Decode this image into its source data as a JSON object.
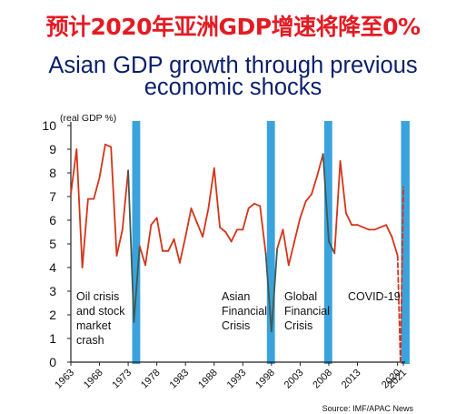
{
  "title_cn": "预计2020年亚洲GDP增速将降至0%",
  "title_en_line1": "Asian GDP growth through previous",
  "title_en_line2": "economic shocks",
  "chart_data": {
    "type": "line",
    "title": "Asian GDP growth through previous economic shocks",
    "ylabel": "(real GDP %)",
    "xlabel": "",
    "ylim": [
      0,
      10
    ],
    "yticks": [
      0,
      1,
      2,
      3,
      4,
      5,
      6,
      7,
      8,
      9,
      10
    ],
    "xlim": [
      1963,
      2021
    ],
    "xtick_labels": [
      "1963",
      "1968",
      "1973",
      "1978",
      "1983",
      "1988",
      "1993",
      "1998",
      "2003",
      "2008",
      "2013",
      "2020",
      "2021"
    ],
    "xtick_values": [
      1963,
      1968,
      1973,
      1978,
      1983,
      1988,
      1993,
      1998,
      2003,
      2008,
      2013,
      2020,
      2021
    ],
    "grid": false,
    "series": [
      {
        "x": [
          1963,
          1964,
          1965,
          1966,
          1967,
          1968,
          1969,
          1970,
          1971,
          1972,
          1973,
          1974,
          1975,
          1976,
          1977,
          1978,
          1979,
          1980,
          1981,
          1982,
          1983,
          1984,
          1985,
          1986,
          1987,
          1988,
          1989,
          1990,
          1991,
          1992,
          1993,
          1994,
          1995,
          1996,
          1997,
          1998,
          1999,
          2000,
          2001,
          2002,
          2003,
          2004,
          2005,
          2006,
          2007,
          2008,
          2009,
          2010,
          2011,
          2012,
          2013,
          2014,
          2015,
          2016,
          2017,
          2018,
          2019,
          2020
        ],
        "values": [
          7.1,
          9.0,
          4.0,
          6.9,
          6.9,
          7.8,
          9.2,
          9.1,
          4.5,
          5.6,
          8.1,
          1.7,
          4.9,
          4.1,
          5.8,
          6.1,
          4.7,
          4.7,
          5.2,
          4.2,
          5.3,
          6.5,
          5.9,
          5.3,
          6.5,
          8.2,
          5.7,
          5.5,
          5.1,
          5.6,
          5.6,
          6.5,
          6.7,
          6.6,
          4.6,
          1.3,
          4.8,
          5.6,
          4.1,
          5.1,
          6.1,
          6.8,
          7.1,
          7.9,
          8.8,
          5.1,
          4.6,
          8.5,
          6.3,
          5.8,
          5.8,
          5.7,
          5.6,
          5.6,
          5.7,
          5.8,
          5.3,
          4.5
        ]
      },
      {
        "style": "dashed",
        "x": [
          2020,
          2020.5,
          2021
        ],
        "values": [
          4.5,
          0,
          7.4
        ]
      }
    ],
    "shaded_periods": [
      {
        "start": 1973.7,
        "end": 1975.1,
        "label": "Oil crisis and stock market crash"
      },
      {
        "start": 1997.2,
        "end": 1998.6,
        "label": "Asian Financial Crisis"
      },
      {
        "start": 2007.2,
        "end": 2008.6,
        "label": "Global Financial Crisis"
      },
      {
        "start": 2020.6,
        "end": 2022.1,
        "label": "COVID-19"
      }
    ],
    "annotations": [
      {
        "lines": [
          "Oil crisis",
          "and stock",
          "market",
          "crash"
        ]
      },
      {
        "lines": [
          "Asian",
          "Financial",
          "Crisis"
        ]
      },
      {
        "lines": [
          "Global",
          "Financial",
          "Crisis"
        ]
      },
      {
        "lines": [
          "COVID-19"
        ]
      }
    ],
    "colors": {
      "line": "#d2351a",
      "line_shaded": "#3f5a52",
      "band": "#3aa3dd",
      "axis": "#222222",
      "title_cn": "#e31b23",
      "title_en": "#0b1f6b"
    }
  },
  "source": "Source: IMF/APAC News"
}
